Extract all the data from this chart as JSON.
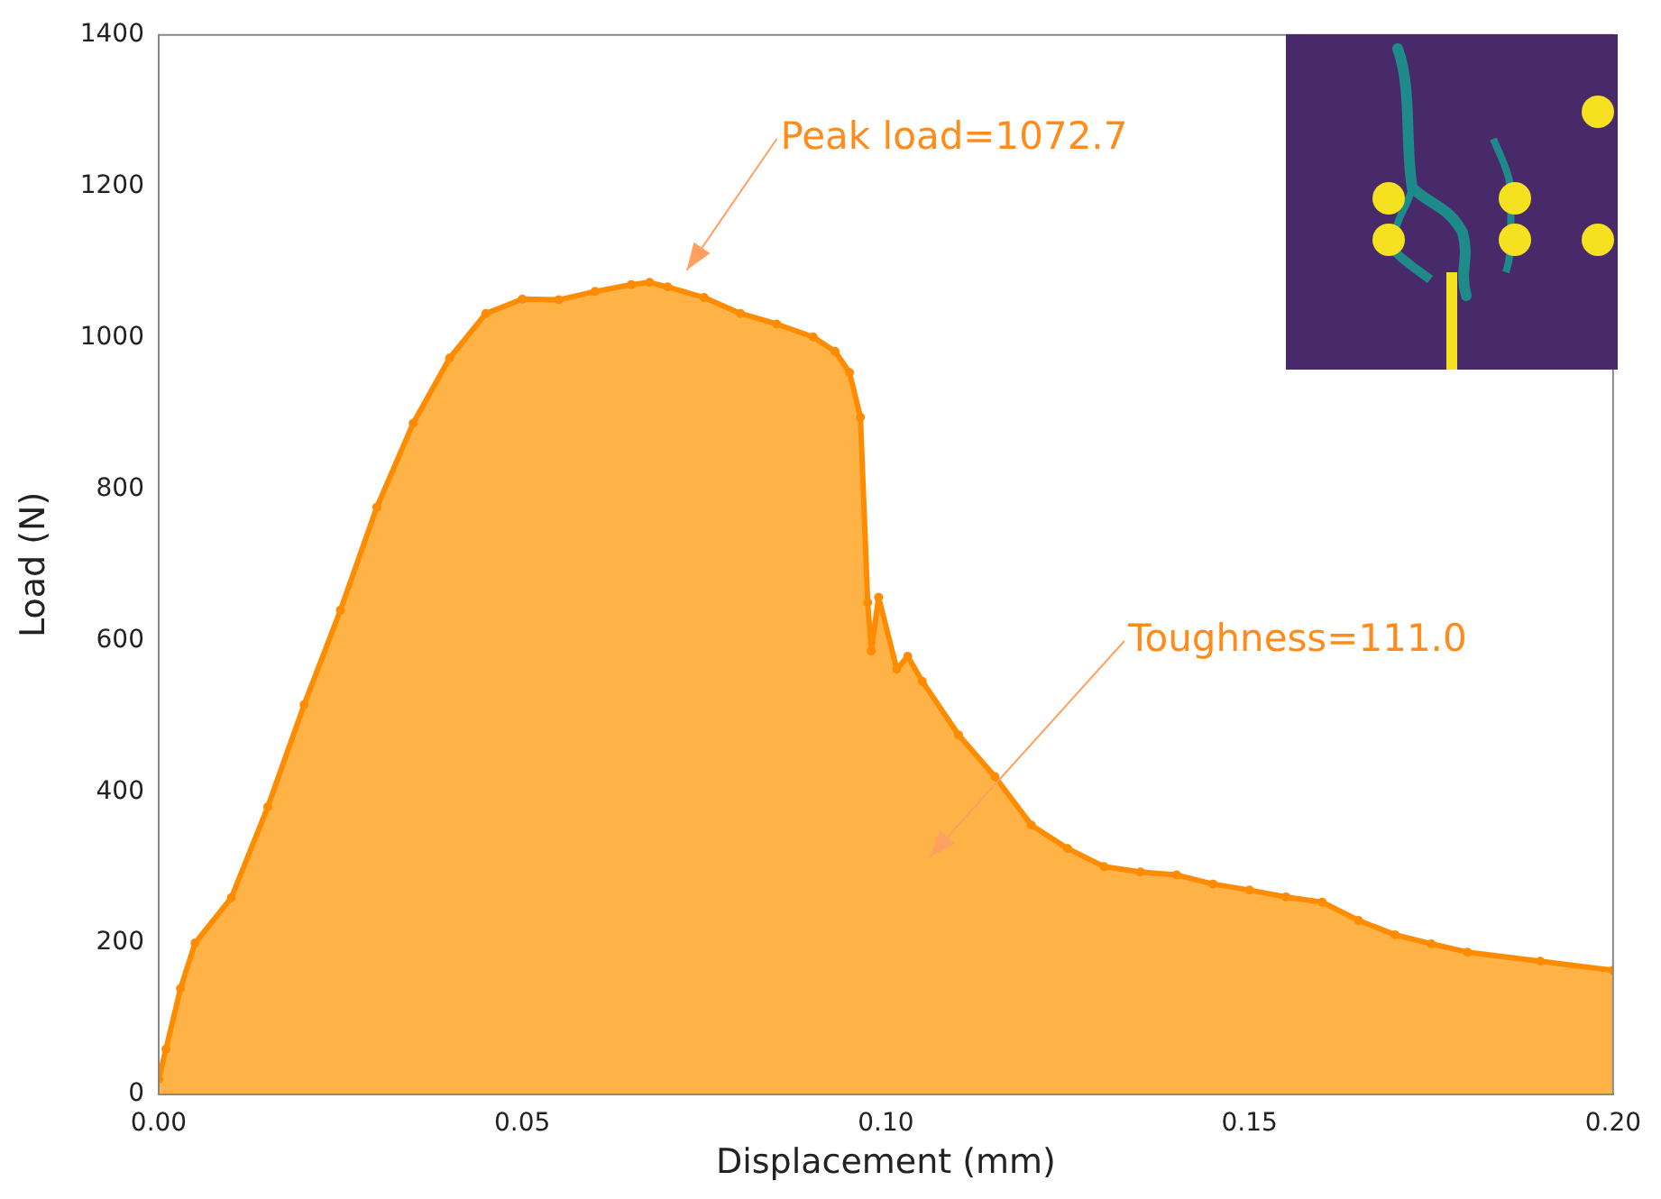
{
  "chart_data": {
    "type": "area",
    "xlabel": "Displacement (mm)",
    "ylabel": "Load (N)",
    "x": [
      0,
      0.001,
      0.003,
      0.005,
      0.01,
      0.015,
      0.02,
      0.025,
      0.03,
      0.035,
      0.04,
      0.045,
      0.05,
      0.055,
      0.06,
      0.065,
      0.0675,
      0.07,
      0.075,
      0.08,
      0.085,
      0.09,
      0.093,
      0.095,
      0.0965,
      0.0975,
      0.098,
      0.099,
      0.1015,
      0.103,
      0.105,
      0.11,
      0.115,
      0.12,
      0.125,
      0.13,
      0.135,
      0.14,
      0.145,
      0.15,
      0.155,
      0.16,
      0.165,
      0.17,
      0.175,
      0.18,
      0.19,
      0.2
    ],
    "series": [
      {
        "color": "#ff8c00",
        "values": [
          20,
          60,
          140,
          200,
          260,
          380,
          515,
          640,
          776,
          887,
          973,
          1032,
          1051,
          1050,
          1061,
          1070,
          1073,
          1067,
          1053,
          1032,
          1018,
          1001,
          982,
          954,
          895,
          650,
          586,
          657,
          562,
          579,
          546,
          475,
          420,
          356,
          325,
          301,
          294,
          290,
          278,
          270,
          261,
          254,
          230,
          211,
          199,
          188,
          176,
          164
        ]
      }
    ],
    "xlim": [
      0,
      0.2
    ],
    "xticks": [
      {
        "value": 0,
        "label": "0.00"
      },
      {
        "value": 0.05,
        "label": "0.05"
      },
      {
        "value": 0.1,
        "label": "0.10"
      },
      {
        "value": 0.15,
        "label": "0.15"
      },
      {
        "value": 0.2,
        "label": "0.20"
      }
    ],
    "ylim": [
      0,
      1400
    ],
    "yticks": [
      0,
      200,
      400,
      600,
      800,
      1000,
      1200,
      1400
    ],
    "marker": "circle",
    "grid": false,
    "legend": false,
    "annotations": [
      "Peak load=1072.7",
      "Toughness=111.0"
    ]
  }
}
